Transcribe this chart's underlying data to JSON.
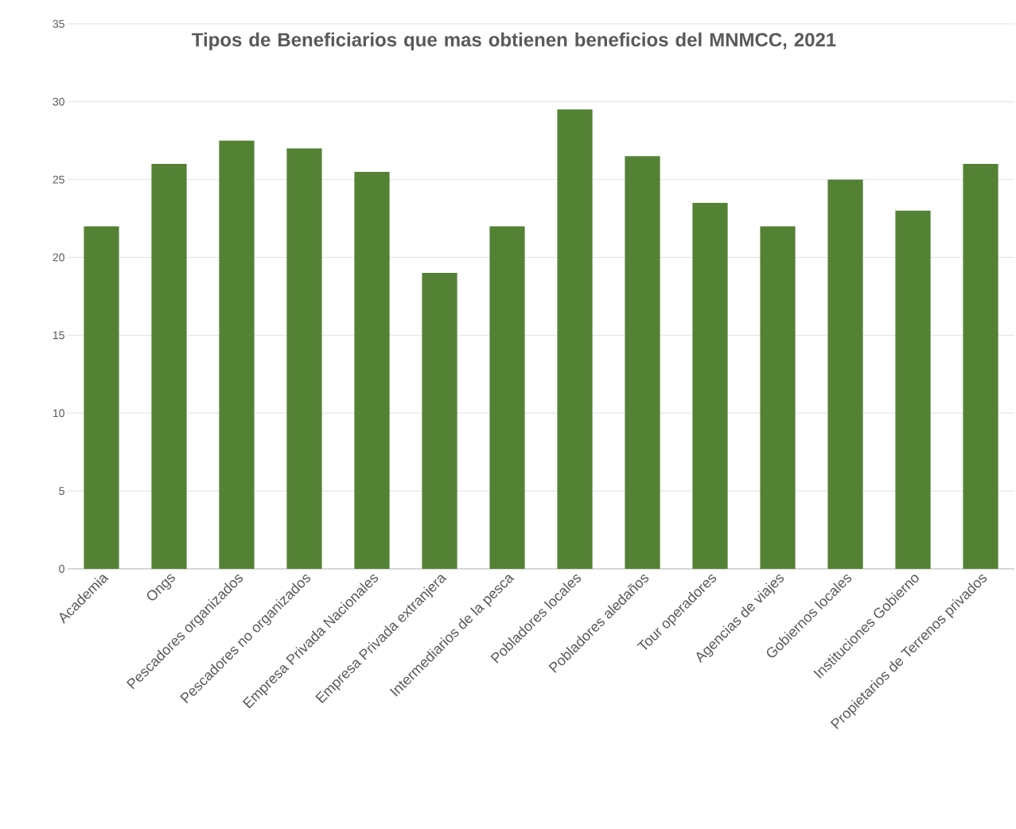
{
  "chart_data": {
    "type": "bar",
    "title": "Tipos de Beneficiarios que mas obtienen beneficios del MNMCC, 2021",
    "categories": [
      "Academia",
      "Ongs",
      "Pescadores organizados",
      "Pescadores no organizados",
      "Empresa Privada Nacionales",
      "Empresa Privada extranjera",
      "Intermediarios de la pesca",
      "Pobladores locales",
      "Pobladores aledaños",
      "Tour operadores",
      "Agencias de viajes",
      "Gobiernos locales",
      "Instituciones Gobierno",
      "Propietarios de Terrenos privados"
    ],
    "values": [
      22,
      26,
      27.5,
      27,
      25.5,
      19,
      22,
      29.5,
      26.5,
      23.5,
      22,
      25,
      23,
      26
    ],
    "color": "#548235",
    "ylim": [
      0,
      35
    ],
    "yticks": [
      0,
      5,
      10,
      15,
      20,
      25,
      30,
      35
    ],
    "grid": "y"
  }
}
